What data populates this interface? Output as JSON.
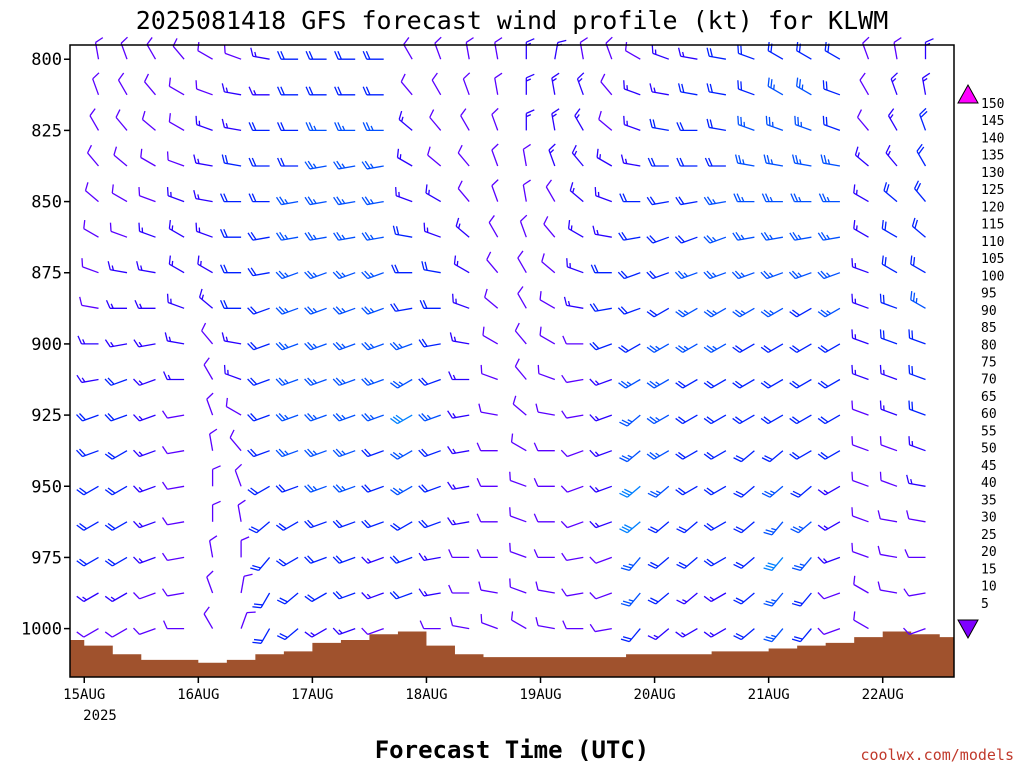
{
  "chart_data": {
    "type": "wind_barb_time_height",
    "title": "2025081418 GFS forecast wind profile (kt) for KLWM",
    "xlabel": "Forecast Time (UTC)",
    "ylabel": "",
    "credit": "coolwx.com/models",
    "x_axis": {
      "ticks": [
        "15AUG",
        "16AUG",
        "17AUG",
        "18AUG",
        "19AUG",
        "20AUG",
        "21AUG",
        "22AUG"
      ],
      "year_label": "2025",
      "range_hours_from_15AUG_00Z": [
        -3,
        183
      ]
    },
    "y_axis": {
      "ticks": [
        800,
        825,
        850,
        875,
        900,
        925,
        950,
        975,
        1000
      ],
      "range_hPa": [
        795,
        1017
      ],
      "inverted": true
    },
    "pressure_levels": [
      800,
      812.5,
      825,
      837.5,
      850,
      862.5,
      875,
      887.5,
      900,
      912.5,
      925,
      937.5,
      950,
      962.5,
      975,
      987.5,
      1000
    ],
    "surface_pressure": {
      "hours": [
        -3,
        3,
        9,
        15,
        21,
        27,
        33,
        39,
        45,
        51,
        57,
        63,
        69,
        75,
        81,
        87,
        93,
        99,
        105,
        111,
        117,
        123,
        129,
        135,
        141,
        147,
        153,
        159,
        165,
        171,
        177,
        183
      ],
      "hPa": [
        1004,
        1006,
        1009,
        1011,
        1011,
        1012,
        1011,
        1009,
        1008,
        1005,
        1004,
        1002,
        1001,
        1006,
        1009,
        1010,
        1010,
        1010,
        1010,
        1010,
        1009,
        1009,
        1009,
        1008,
        1008,
        1007,
        1006,
        1005,
        1003,
        1001,
        1002,
        1003
      ]
    },
    "wind_legend": {
      "unit": "kt",
      "values": [
        5,
        10,
        15,
        20,
        25,
        30,
        35,
        40,
        45,
        50,
        55,
        60,
        65,
        70,
        75,
        80,
        85,
        90,
        95,
        100,
        105,
        110,
        115,
        120,
        125,
        130,
        135,
        140,
        145,
        150
      ],
      "colors": [
        "#7f00ff",
        "#5a00ff",
        "#2a00ff",
        "#0020ff",
        "#0050ff",
        "#0080ff",
        "#00a6ff",
        "#00ccff",
        "#00e5cc",
        "#00e5a0",
        "#00dd70",
        "#00cc30",
        "#33dd00",
        "#80ee00",
        "#ccff00",
        "#ffff00",
        "#ffee00",
        "#ffdd00",
        "#ffbb00",
        "#ff9900",
        "#ff8800",
        "#ff6600",
        "#ff3300",
        "#ff0000",
        "#ff0033",
        "#ff0066",
        "#ff0088",
        "#ff00aa",
        "#ff00cc",
        "#ff00ff"
      ]
    },
    "wind_barbs": {
      "time_hours": [
        -3,
        3,
        9,
        15,
        21,
        27,
        33,
        39,
        45,
        51,
        57,
        63,
        69,
        75,
        81,
        87,
        93,
        99,
        105,
        111,
        117,
        123,
        129,
        135,
        141,
        147,
        153,
        159,
        165,
        171,
        177,
        183
      ],
      "speed_kt": [
        [
          8,
          8,
          8,
          8,
          8,
          10,
          12,
          14,
          18,
          20,
          22,
          22,
          12,
          10,
          10,
          12,
          14,
          14,
          12,
          10,
          12,
          14,
          16,
          18,
          20,
          22,
          22,
          20,
          10,
          12,
          14,
          14
        ],
        [
          8,
          8,
          10,
          10,
          10,
          12,
          14,
          16,
          20,
          22,
          22,
          22,
          12,
          10,
          10,
          12,
          14,
          16,
          14,
          12,
          14,
          16,
          18,
          20,
          22,
          24,
          24,
          22,
          12,
          14,
          16,
          18
        ],
        [
          8,
          8,
          10,
          10,
          12,
          14,
          16,
          18,
          20,
          24,
          24,
          24,
          14,
          12,
          10,
          12,
          14,
          16,
          14,
          12,
          16,
          18,
          20,
          22,
          24,
          24,
          24,
          22,
          12,
          16,
          18,
          20
        ],
        [
          8,
          10,
          10,
          12,
          12,
          14,
          18,
          20,
          22,
          24,
          24,
          24,
          14,
          12,
          12,
          12,
          12,
          14,
          14,
          14,
          16,
          18,
          20,
          22,
          24,
          24,
          24,
          24,
          14,
          16,
          20,
          22
        ],
        [
          8,
          10,
          12,
          12,
          14,
          16,
          18,
          20,
          24,
          24,
          26,
          26,
          16,
          14,
          12,
          12,
          12,
          12,
          14,
          16,
          18,
          20,
          22,
          24,
          24,
          24,
          26,
          24,
          14,
          18,
          20,
          24
        ],
        [
          8,
          10,
          12,
          14,
          14,
          16,
          18,
          22,
          24,
          26,
          26,
          26,
          18,
          16,
          14,
          12,
          10,
          12,
          14,
          16,
          20,
          22,
          22,
          24,
          24,
          24,
          24,
          24,
          16,
          18,
          22,
          24
        ],
        [
          10,
          12,
          14,
          14,
          16,
          16,
          18,
          22,
          24,
          26,
          26,
          24,
          20,
          18,
          14,
          12,
          10,
          10,
          14,
          18,
          20,
          22,
          24,
          24,
          24,
          24,
          24,
          24,
          16,
          20,
          22,
          26
        ],
        [
          10,
          12,
          14,
          16,
          16,
          14,
          18,
          22,
          24,
          26,
          26,
          24,
          22,
          20,
          16,
          12,
          10,
          10,
          14,
          18,
          22,
          22,
          24,
          24,
          24,
          24,
          22,
          24,
          16,
          20,
          24,
          26
        ],
        [
          12,
          14,
          16,
          16,
          14,
          12,
          16,
          22,
          24,
          26,
          26,
          24,
          24,
          20,
          16,
          12,
          10,
          10,
          12,
          18,
          22,
          24,
          24,
          24,
          22,
          22,
          22,
          22,
          14,
          18,
          22,
          24
        ],
        [
          12,
          16,
          18,
          16,
          14,
          12,
          14,
          20,
          24,
          26,
          26,
          24,
          26,
          22,
          16,
          12,
          10,
          10,
          12,
          16,
          24,
          24,
          22,
          22,
          22,
          22,
          20,
          20,
          14,
          16,
          20,
          22
        ],
        [
          14,
          18,
          18,
          16,
          12,
          10,
          12,
          20,
          24,
          26,
          26,
          24,
          28,
          24,
          16,
          12,
          10,
          10,
          12,
          16,
          26,
          24,
          22,
          22,
          20,
          20,
          18,
          18,
          12,
          14,
          18,
          20
        ],
        [
          14,
          18,
          18,
          16,
          12,
          8,
          10,
          18,
          24,
          26,
          24,
          22,
          26,
          22,
          14,
          12,
          10,
          10,
          12,
          14,
          26,
          24,
          22,
          20,
          20,
          22,
          20,
          18,
          10,
          12,
          16,
          18
        ],
        [
          16,
          20,
          20,
          16,
          12,
          8,
          8,
          18,
          22,
          24,
          24,
          20,
          24,
          20,
          14,
          12,
          10,
          10,
          12,
          14,
          28,
          24,
          22,
          20,
          22,
          24,
          22,
          16,
          10,
          12,
          14,
          16
        ],
        [
          16,
          20,
          20,
          16,
          12,
          8,
          8,
          18,
          22,
          22,
          22,
          18,
          22,
          18,
          14,
          12,
          10,
          10,
          12,
          14,
          28,
          22,
          20,
          20,
          22,
          26,
          24,
          16,
          10,
          10,
          12,
          14
        ],
        [
          14,
          18,
          18,
          14,
          10,
          8,
          8,
          20,
          22,
          20,
          20,
          16,
          20,
          16,
          12,
          12,
          10,
          10,
          10,
          12,
          26,
          20,
          18,
          18,
          22,
          28,
          24,
          14,
          8,
          10,
          12,
          12
        ],
        [
          12,
          16,
          16,
          12,
          10,
          8,
          8,
          22,
          20,
          18,
          18,
          14,
          18,
          14,
          12,
          10,
          10,
          10,
          10,
          12,
          24,
          18,
          16,
          16,
          20,
          26,
          22,
          12,
          8,
          8,
          10,
          12
        ],
        [
          10,
          12,
          12,
          10,
          8,
          8,
          8,
          20,
          18,
          16,
          16,
          12,
          14,
          12,
          10,
          10,
          8,
          8,
          10,
          10,
          22,
          16,
          14,
          14,
          18,
          24,
          20,
          10,
          8,
          8,
          8,
          10
        ]
      ],
      "direction_deg": [
        [
          350,
          350,
          340,
          330,
          320,
          300,
          290,
          280,
          270,
          270,
          270,
          270,
          330,
          340,
          350,
          350,
          0,
          10,
          350,
          340,
          300,
          290,
          280,
          280,
          290,
          300,
          300,
          300,
          340,
          350,
          0,
          10
        ],
        [
          340,
          340,
          330,
          320,
          300,
          290,
          280,
          270,
          270,
          270,
          270,
          270,
          320,
          330,
          340,
          350,
          0,
          350,
          340,
          320,
          290,
          280,
          280,
          280,
          290,
          300,
          300,
          290,
          330,
          340,
          350,
          0
        ],
        [
          340,
          330,
          320,
          310,
          300,
          290,
          280,
          270,
          270,
          270,
          270,
          270,
          310,
          320,
          330,
          340,
          0,
          350,
          330,
          310,
          290,
          280,
          270,
          280,
          290,
          290,
          290,
          290,
          320,
          330,
          340,
          350
        ],
        [
          340,
          320,
          310,
          300,
          290,
          280,
          280,
          270,
          270,
          260,
          260,
          260,
          300,
          310,
          320,
          340,
          350,
          340,
          320,
          300,
          280,
          270,
          270,
          270,
          280,
          280,
          280,
          280,
          310,
          320,
          330,
          340
        ],
        [
          340,
          310,
          300,
          290,
          290,
          280,
          270,
          270,
          260,
          260,
          260,
          260,
          290,
          300,
          320,
          340,
          350,
          330,
          310,
          290,
          270,
          260,
          260,
          260,
          270,
          270,
          270,
          270,
          300,
          310,
          320,
          330
        ],
        [
          330,
          300,
          290,
          290,
          300,
          290,
          270,
          260,
          260,
          260,
          260,
          260,
          280,
          290,
          310,
          330,
          340,
          320,
          300,
          280,
          260,
          250,
          250,
          250,
          260,
          260,
          260,
          260,
          300,
          300,
          310,
          320
        ],
        [
          320,
          290,
          280,
          280,
          300,
          300,
          270,
          260,
          250,
          250,
          250,
          250,
          270,
          280,
          300,
          320,
          330,
          310,
          290,
          270,
          250,
          250,
          250,
          250,
          250,
          250,
          250,
          250,
          290,
          300,
          300,
          310
        ],
        [
          310,
          280,
          270,
          270,
          290,
          310,
          270,
          250,
          250,
          250,
          250,
          250,
          260,
          270,
          290,
          310,
          330,
          300,
          280,
          260,
          250,
          240,
          240,
          240,
          240,
          240,
          240,
          240,
          290,
          290,
          300,
          300
        ],
        [
          300,
          270,
          260,
          260,
          280,
          320,
          280,
          250,
          250,
          250,
          250,
          250,
          250,
          260,
          280,
          300,
          320,
          300,
          270,
          250,
          240,
          240,
          240,
          240,
          240,
          240,
          240,
          240,
          290,
          290,
          290,
          300
        ],
        [
          290,
          260,
          250,
          250,
          270,
          330,
          290,
          250,
          250,
          250,
          250,
          250,
          240,
          250,
          270,
          290,
          320,
          290,
          260,
          250,
          240,
          240,
          240,
          240,
          240,
          240,
          240,
          240,
          290,
          290,
          290,
          290
        ],
        [
          280,
          250,
          250,
          250,
          260,
          340,
          300,
          250,
          250,
          250,
          250,
          250,
          240,
          250,
          260,
          280,
          310,
          280,
          260,
          250,
          230,
          240,
          240,
          240,
          240,
          240,
          240,
          240,
          290,
          290,
          290,
          290
        ],
        [
          270,
          250,
          240,
          250,
          260,
          350,
          320,
          250,
          250,
          250,
          250,
          250,
          240,
          250,
          260,
          270,
          300,
          270,
          250,
          250,
          230,
          240,
          240,
          240,
          230,
          230,
          240,
          240,
          290,
          290,
          290,
          280
        ],
        [
          260,
          240,
          240,
          250,
          260,
          0,
          340,
          240,
          250,
          250,
          250,
          250,
          240,
          250,
          260,
          270,
          290,
          270,
          250,
          250,
          230,
          230,
          240,
          240,
          230,
          230,
          230,
          240,
          290,
          290,
          280,
          280
        ],
        [
          250,
          240,
          240,
          250,
          260,
          0,
          350,
          230,
          240,
          250,
          250,
          250,
          240,
          250,
          260,
          270,
          290,
          270,
          250,
          250,
          230,
          230,
          230,
          240,
          230,
          220,
          230,
          240,
          290,
          280,
          280,
          270
        ],
        [
          250,
          240,
          240,
          250,
          260,
          350,
          0,
          220,
          240,
          250,
          250,
          250,
          250,
          260,
          270,
          270,
          290,
          270,
          260,
          250,
          220,
          230,
          230,
          240,
          230,
          220,
          220,
          250,
          290,
          280,
          270,
          260
        ],
        [
          240,
          240,
          240,
          250,
          260,
          340,
          10,
          210,
          230,
          240,
          250,
          250,
          250,
          260,
          270,
          280,
          290,
          280,
          260,
          250,
          220,
          230,
          230,
          240,
          230,
          220,
          220,
          250,
          300,
          280,
          260,
          250
        ],
        [
          240,
          240,
          240,
          250,
          270,
          330,
          20,
          210,
          230,
          240,
          250,
          250,
          260,
          270,
          280,
          290,
          300,
          280,
          270,
          260,
          220,
          230,
          240,
          240,
          230,
          220,
          220,
          250,
          300,
          270,
          250,
          240
        ]
      ]
    }
  }
}
